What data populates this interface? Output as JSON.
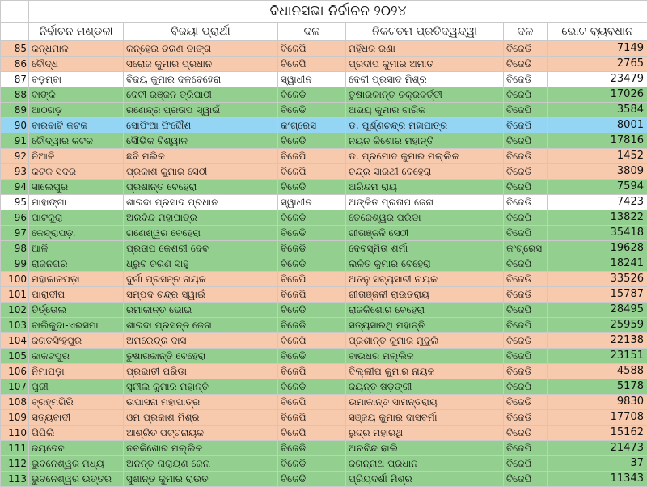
{
  "title": "ବିଧାନସଭା ନିର୍ବାଚନ ୨୦୨୪",
  "headers": [
    "ନିର୍ବାଚନ ମଣ୍ଡଳୀ",
    "ବିଜୟୀ ପ୍ରାର୍ଥୀ",
    "ଦଳ",
    "ନିକଟତମ ପ୍ରତିଦ୍ୱନ୍ଦ୍ୱୀ",
    "ଦଳ",
    "ଭୋଟ ବ୍ୟବଧାନ"
  ],
  "colors": {
    "peach": "#f7c9ad",
    "green": "#93cf8f",
    "blue": "#94d5f3",
    "white": "#ffffff"
  },
  "rows": [
    {
      "no": "85",
      "seat": "କନ୍ଧମାଳ",
      "winner": "କନ୍ହେଇ ଚରଣ ଡାଙ୍ଗ",
      "party": "ବିଜେପି",
      "rival": "ମହିଧର ରଣା",
      "rival_party": "ବିଜେଡି",
      "margin": "7149",
      "highlight": "peach"
    },
    {
      "no": "86",
      "seat": "ବୌଦ୍ଧ",
      "winner": "ସରୋଜ କୁମାର ପ୍ରଧାନ",
      "party": "ବିଜେପି",
      "rival": "ପ୍ରଦୀପ କୁମାର ଅମାତ",
      "rival_party": "ବିଜେଡି",
      "margin": "2765",
      "highlight": "peach"
    },
    {
      "no": "87",
      "seat": "ବଡ଼ମ୍ବା",
      "winner": "ବିଜୟ କୁମାର ଦଳବେହେରା",
      "party": "ସ୍ୱାଧୀନ",
      "rival": "ଦେବୀ ପ୍ରସାଦ ମିଶ୍ର",
      "rival_party": "ବିଜେଡି",
      "margin": "23479",
      "highlight": "white"
    },
    {
      "no": "88",
      "seat": "ବାଙ୍କି",
      "winner": "ଦେବୀ ରଞ୍ଜନ ତ୍ରିପାଠୀ",
      "party": "ବିଜେଡି",
      "rival": "ତୁଷାରକାନ୍ତ ଚକ୍ରବର୍ତ୍ତୀ",
      "rival_party": "ବିଜେପି",
      "margin": "17026",
      "highlight": "green"
    },
    {
      "no": "89",
      "seat": "ଆଠଗଡ଼",
      "winner": "ରଣେନ୍ଦ୍ର ପ୍ରତାପ ସ୍ୱାଇଁ",
      "party": "ବିଜେଡି",
      "rival": "ଅଭୟ କୁମାର ବାରିକ",
      "rival_party": "ବିଜେପି",
      "margin": "3584",
      "highlight": "green"
    },
    {
      "no": "90",
      "seat": "ବାରବାଟି କଟକ",
      "winner": "ସୋଫିଆ ଫିର୍ଦ୍ଦୌଶ",
      "party": "କଂଗ୍ରେସ",
      "rival": "ଡ. ପୂର୍ଣ୍ଣଚନ୍ଦ୍ର ମହାପାତ୍ର",
      "rival_party": "ବିଜେପି",
      "margin": "8001",
      "highlight": "blue"
    },
    {
      "no": "91",
      "seat": "ଚୌଦ୍ୱାର କଟକ",
      "winner": "ସୌଭିକ ବିଶ୍ୱାଳ",
      "party": "ବିଜେଡି",
      "rival": "ନୟନ କିଶୋର ମହାନ୍ତି",
      "rival_party": "ବିଜେପି",
      "margin": "17816",
      "highlight": "green"
    },
    {
      "no": "92",
      "seat": "ନିଆଳି",
      "winner": "ଛବି ମଲିକ",
      "party": "ବିଜେପି",
      "rival": "ଡ. ପ୍ରମୋଦ କୁମାର ମଲ୍ଲିକ",
      "rival_party": "ବିଜେଡି",
      "margin": "1452",
      "highlight": "peach"
    },
    {
      "no": "93",
      "seat": "କଟକ ସଦର",
      "winner": "ପ୍ରକାଶ କୁମାର ସେଠୀ",
      "party": "ବିଜେପି",
      "rival": "ଚନ୍ଦ୍ର ସାରଥୀ ବେହେରା",
      "rival_party": "ବିଜେଡି",
      "margin": "3809",
      "highlight": "peach"
    },
    {
      "no": "94",
      "seat": "ସାଲେପୁର",
      "winner": "ପ୍ରଶାନ୍ତ ବେହେରା",
      "party": "ବିଜେଡି",
      "rival": "ଅରିନ୍ଦମ ରାୟ",
      "rival_party": "ବିଜେପି",
      "margin": "7594",
      "highlight": "green"
    },
    {
      "no": "95",
      "seat": "ମାହାଙ୍ଗା",
      "winner": "ଶାରଦା ପ୍ରସାଦ ପ୍ରଧାନ",
      "party": "ସ୍ୱାଧୀନ",
      "rival": "ଅଙ୍କିତ ପ୍ରତାପ ଜେନା",
      "rival_party": "ବିଜେଡି",
      "margin": "7423",
      "highlight": "white"
    },
    {
      "no": "96",
      "seat": "ପାଟକୁରା",
      "winner": "ଅରବିନ୍ଦ ମହାପାତ୍ର",
      "party": "ବିଜେଡି",
      "rival": "ତେଜେଶ୍ୱର ପରିଡା",
      "rival_party": "ବିଜେପି",
      "margin": "13822",
      "highlight": "green"
    },
    {
      "no": "97",
      "seat": "କେନ୍ଦ୍ରାପଡ଼ା",
      "winner": "ଗଣେଶ୍ୱର ବେହେରା",
      "party": "ବିଜେଡି",
      "rival": "ଗୀତାଞ୍ଜଳି ସେଠୀ",
      "rival_party": "ବିଜେପି",
      "margin": "35418",
      "highlight": "green"
    },
    {
      "no": "98",
      "seat": "ଆଳି",
      "winner": "ପ୍ରତାପ କେଶରୀ ଦେବ",
      "party": "ବିଜେଡି",
      "rival": "ଦେବସ୍ମିତା ଶର୍ମା",
      "rival_party": "କଂଗ୍ରେସ",
      "margin": "19628",
      "highlight": "green"
    },
    {
      "no": "99",
      "seat": "ରାଜନଗର",
      "winner": "ଧ୍ରୁବ ଚରଣ ସାହୁ",
      "party": "ବିଜେଡି",
      "rival": "ଲଳିତ କୁମାର ବେହେରା",
      "rival_party": "ବିଜେପି",
      "margin": "18241",
      "highlight": "green"
    },
    {
      "no": "100",
      "seat": "ମହାକାଳପଡ଼ା",
      "winner": "ଦୁର୍ଗା ପ୍ରସନ୍ନ ନାୟକ",
      "party": "ବିଜେପି",
      "rival": "ଅତନୁ ସବ୍ୟସାଚୀ ନାୟକ",
      "rival_party": "ବିଜେଡି",
      "margin": "33526",
      "highlight": "peach"
    },
    {
      "no": "101",
      "seat": "ପାରାଦୀପ",
      "winner": "ସମ୍ପଦ ଚନ୍ଦ୍ର ସ୍ୱାଇଁ",
      "party": "ବିଜେପି",
      "rival": "ଗୀତାଞ୍ଜଳୀ ରାଉତରାୟ",
      "rival_party": "ବିଜେଡି",
      "margin": "15787",
      "highlight": "peach"
    },
    {
      "no": "102",
      "seat": "ତିର୍ତ୍ତୋଲ",
      "winner": "ରମାକାନ୍ତ ଭୋଇ",
      "party": "ବିଜେଡି",
      "rival": "ରାଜକିଶୋର ବେହେରା",
      "rival_party": "ବିଜେପି",
      "margin": "28495",
      "highlight": "green"
    },
    {
      "no": "103",
      "seat": "ବାଲିକୁଦା-ଏରସମା",
      "winner": "ଶାରଦା ପ୍ରସନ୍ନ ଜେନା",
      "party": "ବିଜେଡି",
      "rival": "ସତ୍ୟସାରଥି ମହାନ୍ତି",
      "rival_party": "ବିଜେପି",
      "margin": "25959",
      "highlight": "green"
    },
    {
      "no": "104",
      "seat": "ଜଗତସିଂହପୁର",
      "winner": "ଅମରେନ୍ଦ୍ର ଦାସ",
      "party": "ବିଜେପି",
      "rival": "ପ୍ରଶାନ୍ତ କୁମାର ମୁଦୁଲି",
      "rival_party": "ବିଜେଡି",
      "margin": "22138",
      "highlight": "peach"
    },
    {
      "no": "105",
      "seat": "କାକଟପୁର",
      "winner": "ତୁଷାରକାନ୍ତି ବେହେରା",
      "party": "ବିଜେଡି",
      "rival": "ବାଉଧର ମଲ୍ଲିକ",
      "rival_party": "ବିଜେପି",
      "margin": "23151",
      "highlight": "green"
    },
    {
      "no": "106",
      "seat": "ନିମାପଡ଼ା",
      "winner": "ପ୍ରଭାତୀ ପରିଡା",
      "party": "ବିଜେପି",
      "rival": "ଦିଲ୍ଲୀପ କୁମାର ନାୟକ",
      "rival_party": "ବିଜେଡି",
      "margin": "4588",
      "highlight": "peach"
    },
    {
      "no": "107",
      "seat": "ପୁରୀ",
      "winner": "ସୁନୀଲ କୁମାର ମହାନ୍ତି",
      "party": "ବିଜେଡି",
      "rival": "ଜୟନ୍ତ ଷଡ଼ଙ୍ଗୀ",
      "rival_party": "ବିଜେପି",
      "margin": "5178",
      "highlight": "green"
    },
    {
      "no": "108",
      "seat": "ବ୍ରହ୍ମଗିରି",
      "winner": "ଉପାସନା ମହାପାତ୍ର",
      "party": "ବିଜେପି",
      "rival": "ଉମାକାନ୍ତ ସାମନ୍ତରାୟ",
      "rival_party": "ବିଜେଡି",
      "margin": "9830",
      "highlight": "peach"
    },
    {
      "no": "109",
      "seat": "ସତ୍ୟବାଦୀ",
      "winner": "ଓମ ପ୍ରକାଶ ମିଶ୍ର",
      "party": "ବିଜେପି",
      "rival": "ସଞ୍ଜୟ କୁମାର ଦାସବର୍ମା",
      "rival_party": "ବିଜେଡି",
      "margin": "17708",
      "highlight": "peach"
    },
    {
      "no": "110",
      "seat": "ପିପିଲି",
      "winner": "ଆଶ୍ରିତ ପଟ୍ଟନାୟକ",
      "party": "ବିଜେପି",
      "rival": "ରୁଦ୍ର ମହାରଥି",
      "rival_party": "ବିଜେଡି",
      "margin": "15162",
      "highlight": "peach"
    },
    {
      "no": "111",
      "seat": "ଜୟଦେବ",
      "winner": "ନବକିଶୋର ମଲ୍ଲିକ",
      "party": "ବିଜେଡି",
      "rival": "ଅରବିନ୍ଦ ଢାଲି",
      "rival_party": "ବିଜେପି",
      "margin": "21473",
      "highlight": "green"
    },
    {
      "no": "112",
      "seat": "ଭୁବନେଶ୍ୱର ମଧ୍ୟ",
      "winner": "ଅନନ୍ତ ନାରାୟଣ ଜେନା",
      "party": "ବିଜେଡି",
      "rival": "ଜଗନ୍ନାଥ ପ୍ରଧାନ",
      "rival_party": "ବିଜେପି",
      "margin": "37",
      "highlight": "green"
    },
    {
      "no": "113",
      "seat": "ଭୁବନେଶ୍ୱର ଉତ୍ତର",
      "winner": "ସୁଶାନ୍ତ କୁମାର ରାଉତ",
      "party": "ବିଜେଡି",
      "rival": "ପ୍ରିୟଦର୍ଶୀ ମିଶ୍ର",
      "rival_party": "ବିଜେପି",
      "margin": "11343",
      "highlight": "green"
    }
  ]
}
